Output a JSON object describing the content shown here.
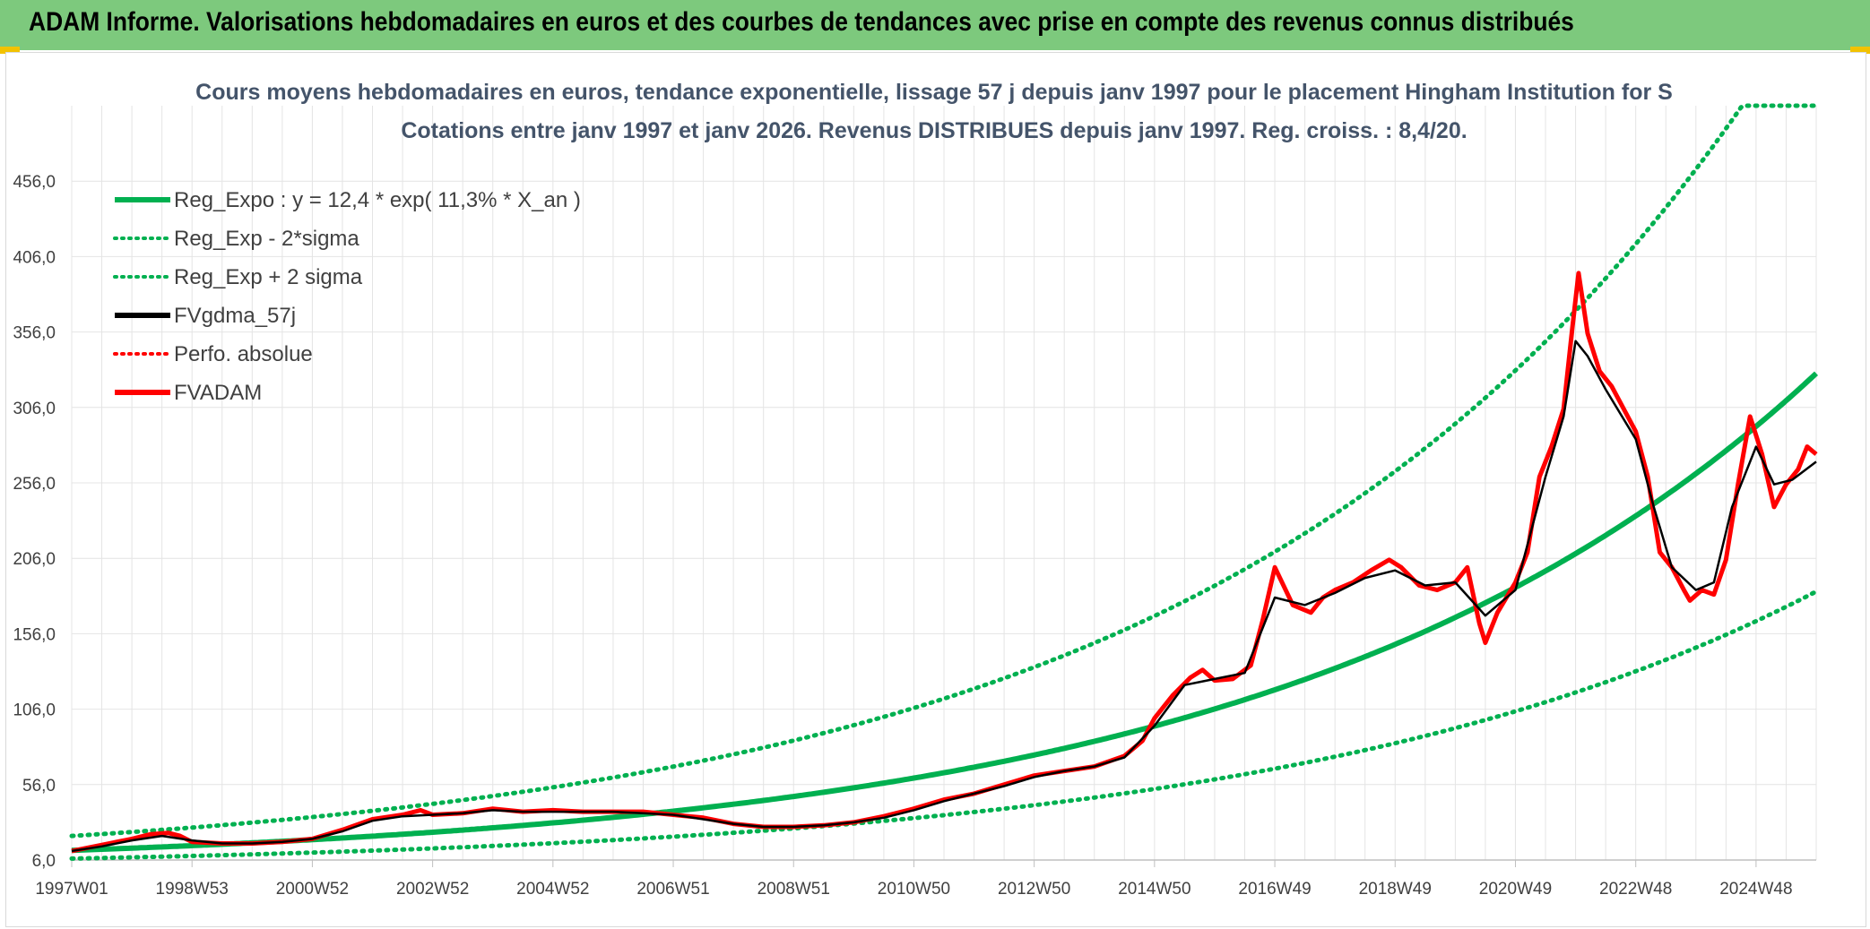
{
  "header": {
    "title": "ADAM Informe. Valorisations hebdomadaires en euros et des courbes de tendances avec prise en compte des revenus connus distribués"
  },
  "colors": {
    "header_bg": "#7dc97d",
    "green": "#00b050",
    "red": "#ff0000",
    "black": "#000000",
    "grid": "#e4e4e4"
  },
  "chart_data": {
    "type": "line",
    "title_line1": "Cours moyens hebdomadaires en euros, tendance exponentielle, lissage 57 j depuis janv 1997 pour le placement Hingham Institution for S",
    "title_line2": "Cotations entre janv 1997 et janv 2026. Revenus DISTRIBUES depuis janv 1997. Reg. croiss. : 8,4/20.",
    "x_range": [
      1997.0,
      2026.0
    ],
    "ylim": [
      6,
      506
    ],
    "y_ticks": [
      {
        "v": 6,
        "label": "6,0"
      },
      {
        "v": 56,
        "label": "56,0"
      },
      {
        "v": 106,
        "label": "106,0"
      },
      {
        "v": 156,
        "label": "156,0"
      },
      {
        "v": 206,
        "label": "206,0"
      },
      {
        "v": 256,
        "label": "256,0"
      },
      {
        "v": 306,
        "label": "306,0"
      },
      {
        "v": 356,
        "label": "356,0"
      },
      {
        "v": 406,
        "label": "406,0"
      },
      {
        "v": 456,
        "label": "456,0"
      }
    ],
    "x_ticks": [
      {
        "t": 1997.0,
        "label": "1997W01"
      },
      {
        "t": 1999.0,
        "label": "1998W53"
      },
      {
        "t": 2001.0,
        "label": "2000W52"
      },
      {
        "t": 2003.0,
        "label": "2002W52"
      },
      {
        "t": 2005.0,
        "label": "2004W52"
      },
      {
        "t": 2007.0,
        "label": "2006W51"
      },
      {
        "t": 2009.0,
        "label": "2008W51"
      },
      {
        "t": 2011.0,
        "label": "2010W50"
      },
      {
        "t": 2013.0,
        "label": "2012W50"
      },
      {
        "t": 2015.0,
        "label": "2014W50"
      },
      {
        "t": 2017.0,
        "label": "2016W49"
      },
      {
        "t": 2019.0,
        "label": "2018W49"
      },
      {
        "t": 2021.0,
        "label": "2020W49"
      },
      {
        "t": 2023.0,
        "label": "2022W48"
      },
      {
        "t": 2025.0,
        "label": "2024W48"
      }
    ],
    "regression": {
      "a": 12.4,
      "rate": 0.113,
      "lower_factor": 0.56,
      "upper_factor": 1.77
    },
    "legend": [
      {
        "label": "Reg_Expo : y = 12,4 * exp( 11,3% *  X_an )",
        "style": "solid",
        "color": "#00b050"
      },
      {
        "label": "Reg_Exp - 2*sigma",
        "style": "dotted",
        "color": "#00b050"
      },
      {
        "label": "Reg_Exp + 2 sigma",
        "style": "dotted",
        "color": "#00b050"
      },
      {
        "label": "FVgdma_57j",
        "style": "solid",
        "color": "#000000"
      },
      {
        "label": "Perfo. absolue",
        "style": "dotted",
        "color": "#ff0000"
      },
      {
        "label": "FVADAM",
        "style": "solid",
        "color": "#ff0000"
      }
    ],
    "series": [
      {
        "name": "FVADAM",
        "points": [
          [
            1997.0,
            12
          ],
          [
            1997.5,
            16
          ],
          [
            1998.0,
            20
          ],
          [
            1998.3,
            23
          ],
          [
            1998.6,
            24
          ],
          [
            1998.8,
            22
          ],
          [
            1999.0,
            18
          ],
          [
            1999.5,
            17
          ],
          [
            2000.0,
            17
          ],
          [
            2000.5,
            18
          ],
          [
            2001.0,
            20
          ],
          [
            2001.5,
            26
          ],
          [
            2002.0,
            33
          ],
          [
            2002.5,
            36
          ],
          [
            2002.8,
            39
          ],
          [
            2003.0,
            36
          ],
          [
            2003.5,
            37
          ],
          [
            2004.0,
            40
          ],
          [
            2004.5,
            38
          ],
          [
            2005.0,
            39
          ],
          [
            2005.5,
            38
          ],
          [
            2006.0,
            38
          ],
          [
            2006.5,
            38
          ],
          [
            2007.0,
            36
          ],
          [
            2007.5,
            34
          ],
          [
            2008.0,
            30
          ],
          [
            2008.5,
            28
          ],
          [
            2009.0,
            28
          ],
          [
            2009.5,
            29
          ],
          [
            2010.0,
            31
          ],
          [
            2010.5,
            35
          ],
          [
            2011.0,
            40
          ],
          [
            2011.5,
            46
          ],
          [
            2012.0,
            50
          ],
          [
            2012.5,
            56
          ],
          [
            2013.0,
            62
          ],
          [
            2013.5,
            65
          ],
          [
            2014.0,
            68
          ],
          [
            2014.5,
            75
          ],
          [
            2014.8,
            85
          ],
          [
            2015.0,
            100
          ],
          [
            2015.3,
            115
          ],
          [
            2015.6,
            127
          ],
          [
            2015.8,
            132
          ],
          [
            2016.0,
            125
          ],
          [
            2016.3,
            126
          ],
          [
            2016.6,
            135
          ],
          [
            2016.8,
            165
          ],
          [
            2017.0,
            200
          ],
          [
            2017.3,
            175
          ],
          [
            2017.6,
            170
          ],
          [
            2017.8,
            180
          ],
          [
            2018.0,
            185
          ],
          [
            2018.3,
            190
          ],
          [
            2018.6,
            198
          ],
          [
            2018.9,
            205
          ],
          [
            2019.1,
            200
          ],
          [
            2019.4,
            188
          ],
          [
            2019.7,
            185
          ],
          [
            2020.0,
            190
          ],
          [
            2020.2,
            200
          ],
          [
            2020.4,
            163
          ],
          [
            2020.5,
            150
          ],
          [
            2020.7,
            170
          ],
          [
            2021.0,
            190
          ],
          [
            2021.2,
            210
          ],
          [
            2021.4,
            260
          ],
          [
            2021.6,
            280
          ],
          [
            2021.8,
            305
          ],
          [
            2021.95,
            360
          ],
          [
            2022.05,
            395
          ],
          [
            2022.2,
            355
          ],
          [
            2022.4,
            330
          ],
          [
            2022.6,
            320
          ],
          [
            2022.8,
            305
          ],
          [
            2023.0,
            290
          ],
          [
            2023.2,
            260
          ],
          [
            2023.4,
            210
          ],
          [
            2023.6,
            200
          ],
          [
            2023.8,
            185
          ],
          [
            2023.9,
            178
          ],
          [
            2024.1,
            185
          ],
          [
            2024.3,
            182
          ],
          [
            2024.5,
            205
          ],
          [
            2024.7,
            255
          ],
          [
            2024.9,
            300
          ],
          [
            2025.1,
            275
          ],
          [
            2025.3,
            240
          ],
          [
            2025.5,
            255
          ],
          [
            2025.7,
            265
          ],
          [
            2025.85,
            280
          ],
          [
            2026.0,
            275
          ]
        ]
      },
      {
        "name": "FVgdma_57j",
        "points": [
          [
            1997.0,
            12
          ],
          [
            1997.5,
            15
          ],
          [
            1998.0,
            19
          ],
          [
            1998.5,
            22
          ],
          [
            1999.0,
            19
          ],
          [
            1999.5,
            17
          ],
          [
            2000.0,
            17
          ],
          [
            2000.5,
            18
          ],
          [
            2001.0,
            20
          ],
          [
            2001.5,
            25
          ],
          [
            2002.0,
            32
          ],
          [
            2002.5,
            35
          ],
          [
            2003.0,
            36
          ],
          [
            2003.5,
            37
          ],
          [
            2004.0,
            39
          ],
          [
            2004.5,
            38
          ],
          [
            2005.0,
            38
          ],
          [
            2005.5,
            38
          ],
          [
            2006.0,
            38
          ],
          [
            2006.5,
            37
          ],
          [
            2007.0,
            36
          ],
          [
            2007.5,
            33
          ],
          [
            2008.0,
            30
          ],
          [
            2008.5,
            28
          ],
          [
            2009.0,
            28
          ],
          [
            2009.5,
            29
          ],
          [
            2010.0,
            31
          ],
          [
            2010.5,
            34
          ],
          [
            2011.0,
            39
          ],
          [
            2011.5,
            45
          ],
          [
            2012.0,
            50
          ],
          [
            2012.5,
            55
          ],
          [
            2013.0,
            61
          ],
          [
            2013.5,
            65
          ],
          [
            2014.0,
            68
          ],
          [
            2014.5,
            74
          ],
          [
            2015.0,
            95
          ],
          [
            2015.5,
            122
          ],
          [
            2016.0,
            126
          ],
          [
            2016.5,
            130
          ],
          [
            2017.0,
            180
          ],
          [
            2017.5,
            175
          ],
          [
            2018.0,
            183
          ],
          [
            2018.5,
            193
          ],
          [
            2019.0,
            198
          ],
          [
            2019.5,
            188
          ],
          [
            2020.0,
            190
          ],
          [
            2020.5,
            168
          ],
          [
            2021.0,
            185
          ],
          [
            2021.5,
            260
          ],
          [
            2021.8,
            300
          ],
          [
            2022.0,
            350
          ],
          [
            2022.2,
            340
          ],
          [
            2022.5,
            318
          ],
          [
            2023.0,
            285
          ],
          [
            2023.3,
            240
          ],
          [
            2023.6,
            200
          ],
          [
            2024.0,
            185
          ],
          [
            2024.3,
            190
          ],
          [
            2024.6,
            240
          ],
          [
            2025.0,
            280
          ],
          [
            2025.3,
            255
          ],
          [
            2025.6,
            258
          ],
          [
            2026.0,
            270
          ]
        ]
      }
    ]
  }
}
